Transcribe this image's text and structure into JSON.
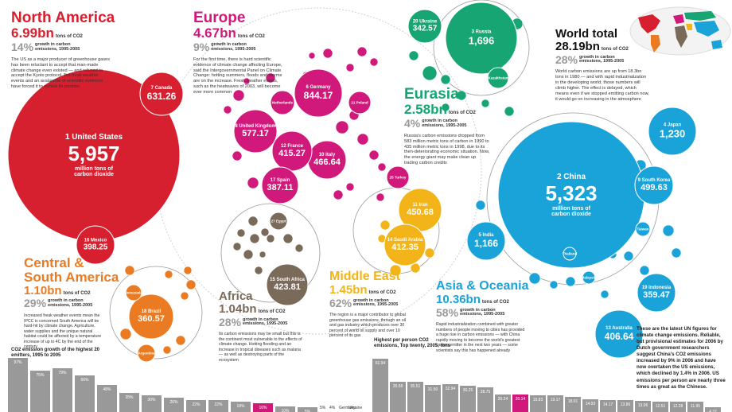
{
  "chart_data": {
    "type": "bubble",
    "colors": {
      "north_america": "#d7202f",
      "europe": "#d0197b",
      "eurasia": "#17a673",
      "asia": "#1aa3d9",
      "middle_east": "#f2b418",
      "africa": "#7a6a5a",
      "south_america": "#ea7b22",
      "grey": "#999999"
    },
    "regions": [
      {
        "key": "north_america",
        "name": "North America",
        "total": "6.99bn",
        "unit": "tons of CO2",
        "pct": "14%",
        "sub": "growth in carbon emissions, 1995-2005",
        "desc": "The US as a major producer of greenhouse gases has been reluctant to accept that man-made climate change even existed — and refused to accept the Kyoto protocol. But freak weather events and an avalanche of scientific evidence have forced it to rethink its position"
      },
      {
        "key": "europe",
        "name": "Europe",
        "total": "4.67bn",
        "unit": "tons of CO2",
        "pct": "9%",
        "sub": "growth in carbon emissions, 1995-2005",
        "desc": "For the first time, there is hard scientific evidence of climate change affecting Europe, said the Intergovernmental Panel on Climate Change: hotting summers, floods and storms are on the increase. Fresh weather events, such as the heatwaves of 2003, will become ever more common"
      },
      {
        "key": "eurasia",
        "name": "Eurasia",
        "total": "2.58bn",
        "unit": "tons of CO2",
        "pct": "4%",
        "sub": "growth in carbon emissions, 1995-2005",
        "desc": "Russia's carbon emissions dropped from 583 million metric tons of carbon in 1990 to 435 million metric tons in 1998, due to its then-deteriorating economic situation. Now, the energy giant may make clean up trading carbon credits"
      },
      {
        "key": "world",
        "name": "World total",
        "total": "28.19bn",
        "unit": "tons of CO2",
        "pct": "28%",
        "sub": "growth in carbon emissions, 1995-2005",
        "desc": "World carbon emissions are up from 18.3bn tons in 1980 — and with rapid industrialization in the developing world, those numbers will climb higher. The effect is delayed, which means even if we stopped emitting carbon now, it would go on increasing in the atmosphere"
      },
      {
        "key": "south_america",
        "name": "Central & South America",
        "total": "1.10bn",
        "unit": "tons of CO2",
        "pct": "29%",
        "sub": "growth in carbon emissions, 1995-2005",
        "desc": "Increased freak weather events mean the IPCC is concerned South America will be hard-hit by climate change. Agriculture, water supplies and the unique natural habitat could be affected by a temperature increase of up to 4C by the end of the century"
      },
      {
        "key": "africa",
        "name": "Africa",
        "total": "1.04bn",
        "unit": "tons of CO2",
        "pct": "28%",
        "sub": "growth in carbon emissions, 1995-2005",
        "desc": "Its carbon emissions may be small but this is the continent most vulnerable to the effects of climate change. Hotting flooding and an increase in tropical diseases such as malaria — as well as destroying parts of the ecosystem"
      },
      {
        "key": "middle_east",
        "name": "Middle East",
        "total": "1.45bn",
        "unit": "tons of CO2",
        "pct": "62%",
        "sub": "growth in carbon emissions, 1995-2005",
        "desc": "The region is a major contributor to global greenhouse gas emissions, through an oil and gas industry which produces over 30 percent of world oil supply and over 10 percent of its gas"
      },
      {
        "key": "asia",
        "name": "Asia & Oceania",
        "total": "10.36bn",
        "unit": "tons of CO2",
        "pct": "58%",
        "sub": "growth in carbon emissions, 1995-2005",
        "desc": "Rapid industrialization combined with greater numbers of people moving to cities has provided a huge rise in carbon emissions — with China rapidly moving to become the world's greatest carbon emitter in the next two years — some scientists say this has happened already"
      }
    ],
    "countries": [
      {
        "rank": "1",
        "name": "United States",
        "value": "5,957",
        "unit": "million tons of carbon dioxide",
        "region": "north_america"
      },
      {
        "rank": "7",
        "name": "Canada",
        "value": "631.26",
        "region": "north_america"
      },
      {
        "rank": "16",
        "name": "Mexico",
        "value": "398.25",
        "region": "north_america"
      },
      {
        "rank": "2",
        "name": "China",
        "value": "5,323",
        "unit": "million tons of carbon dioxide",
        "region": "asia"
      },
      {
        "rank": "3",
        "name": "Russia",
        "value": "1,696",
        "region": "eurasia"
      },
      {
        "rank": "20",
        "name": "Ukraine",
        "value": "342.57",
        "region": "eurasia"
      },
      {
        "rank": "",
        "name": "Kazakhstan",
        "value": "",
        "region": "eurasia"
      },
      {
        "rank": "4",
        "name": "Japan",
        "value": "1,230",
        "region": "asia"
      },
      {
        "rank": "5",
        "name": "India",
        "value": "1,166",
        "region": "asia"
      },
      {
        "rank": "9",
        "name": "South Korea",
        "value": "499.63",
        "region": "asia"
      },
      {
        "rank": "13",
        "name": "Australia",
        "value": "406.64",
        "region": "asia"
      },
      {
        "rank": "19",
        "name": "Indonesia",
        "value": "359.47",
        "region": "asia"
      },
      {
        "rank": "",
        "name": "Taiwan",
        "value": "",
        "region": "asia"
      },
      {
        "rank": "",
        "name": "Thailand",
        "value": "",
        "region": "asia"
      },
      {
        "rank": "",
        "name": "Malaysia",
        "value": "",
        "region": "asia"
      },
      {
        "rank": "6",
        "name": "Germany",
        "value": "844.17",
        "region": "europe"
      },
      {
        "rank": "8",
        "name": "United Kingdom",
        "value": "577.17",
        "region": "europe"
      },
      {
        "rank": "10",
        "name": "Italy",
        "value": "466.64",
        "region": "europe"
      },
      {
        "rank": "12",
        "name": "France",
        "value": "415.27",
        "region": "europe"
      },
      {
        "rank": "17",
        "name": "Spain",
        "value": "387.11",
        "region": "europe"
      },
      {
        "rank": "",
        "name": "Netherlands",
        "value": "",
        "region": "europe"
      },
      {
        "rank": "21",
        "name": "Poland",
        "value": "",
        "region": "europe"
      },
      {
        "rank": "25",
        "name": "Turkey",
        "value": "",
        "region": "europe"
      },
      {
        "rank": "11",
        "name": "Iran",
        "value": "450.68",
        "region": "middle_east"
      },
      {
        "rank": "14",
        "name": "Saudi Arabia",
        "value": "412.35",
        "region": "middle_east"
      },
      {
        "rank": "15",
        "name": "South Africa",
        "value": "423.81",
        "region": "africa"
      },
      {
        "rank": "27",
        "name": "Egypt",
        "value": "",
        "region": "africa"
      },
      {
        "rank": "18",
        "name": "Brazil",
        "value": "360.57",
        "region": "south_america"
      },
      {
        "rank": "",
        "name": "Venezuela",
        "value": "",
        "region": "south_america"
      },
      {
        "rank": "",
        "name": "Argentina",
        "value": "",
        "region": "south_america"
      }
    ],
    "growth_chart": {
      "type": "bar",
      "title": "CO2 emission growth of the highest 20 emitters, 1995 to 2005",
      "values": [
        97,
        75,
        79,
        66,
        48,
        35,
        30,
        26,
        22,
        22,
        18,
        16,
        10,
        5
      ],
      "labels": [
        "97%",
        "75%",
        "79%",
        "66%",
        "48%",
        "35%",
        "30%",
        "26%",
        "22%",
        "22%",
        "18%",
        "16%",
        "10%",
        "5%"
      ],
      "highlight_index": 11,
      "tail_labels": [
        "5%",
        "4%",
        "Germany",
        "Ukraine"
      ]
    },
    "per_person_chart": {
      "type": "bar",
      "title": "Highest per person CO2 emissions, Top twenty, 2005, tons",
      "values": [
        61.94,
        35.58,
        35.51,
        31.5,
        32.94,
        30.25,
        28.75,
        20.24,
        20.14,
        19.83,
        19.17,
        18.01,
        14.93,
        14.17,
        13.86,
        13.06,
        12.51,
        12.28,
        11.95,
        4.37
      ],
      "labels": [
        "61.94",
        "35.58",
        "35.51",
        "31.50",
        "32.94",
        "30.25",
        "28.75",
        "20.24",
        "20.14",
        "19.83",
        "19.17",
        "18.01",
        "14.93",
        "14.17",
        "13.86",
        "13.06",
        "12.51",
        "12.28",
        "11.95",
        "4.37"
      ],
      "highlight_index": 8
    },
    "note": "These are the latest UN figures for climate change emissions. Reliable, but provisional estimates for 2006 by Dutch government researchers suggest China's CO2 emissions increased by 9% in 2006 and have now overtaken the US emissions, which declined by 1.4% in 2006. US emissions per person are nearly three times as great as the Chinese."
  }
}
